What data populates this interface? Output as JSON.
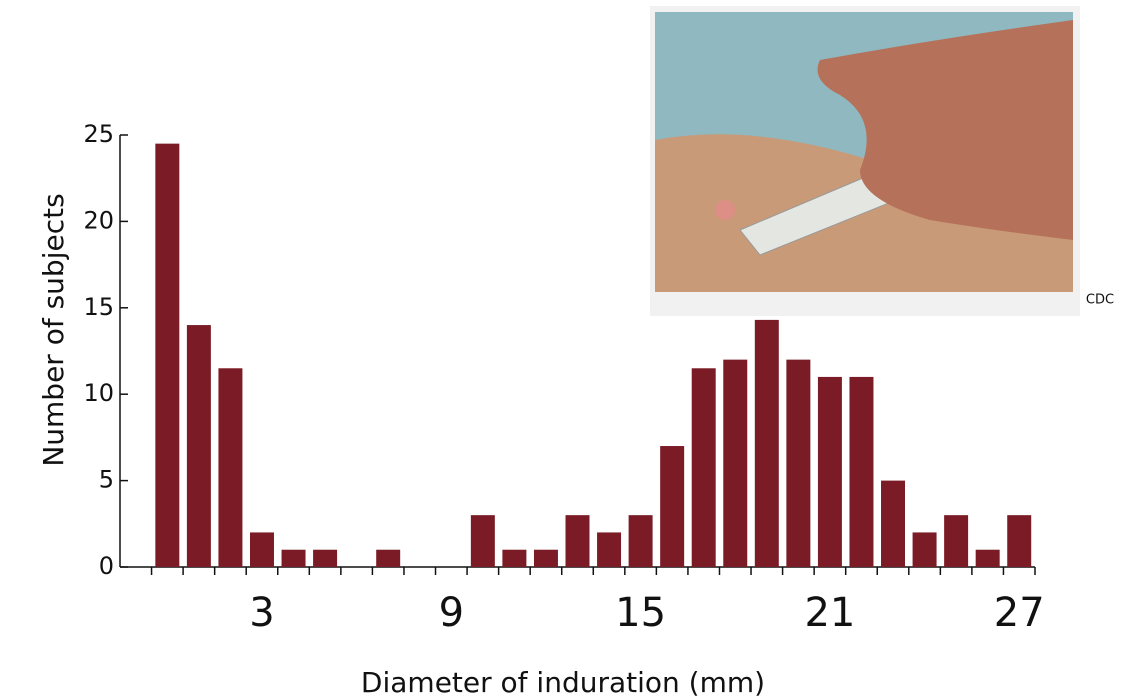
{
  "chart_data": {
    "type": "histogram",
    "x_label": "Diameter of induration (mm)",
    "y_label": "Number of subjects",
    "bins": [
      -0.5,
      0.5,
      1.5,
      2.5,
      3.5,
      4.5,
      5.5,
      6.5,
      7.5,
      8.5,
      9.5,
      10.5,
      11.5,
      12.5,
      13.5,
      14.5,
      15.5,
      16.5,
      17.5,
      18.5,
      19.5,
      20.5,
      21.5,
      22.5,
      23.5,
      24.5,
      25.5,
      26.5,
      27.5
    ],
    "values": [
      24.5,
      14,
      11.5,
      2,
      1,
      1,
      0,
      1,
      0,
      0,
      3,
      1,
      1,
      3,
      2,
      3,
      7,
      11.5,
      12,
      14.3,
      12,
      11,
      11,
      5,
      2,
      3,
      1,
      3
    ],
    "color": "#7a1b25",
    "xlim": [
      -1.5,
      27.5
    ],
    "xticks": [
      3,
      9,
      15,
      21,
      27
    ],
    "ylim": [
      0,
      25
    ],
    "yticks": [
      0,
      5,
      10,
      15,
      20,
      25
    ],
    "grid": false
  },
  "image": {
    "credit": "CDC"
  }
}
